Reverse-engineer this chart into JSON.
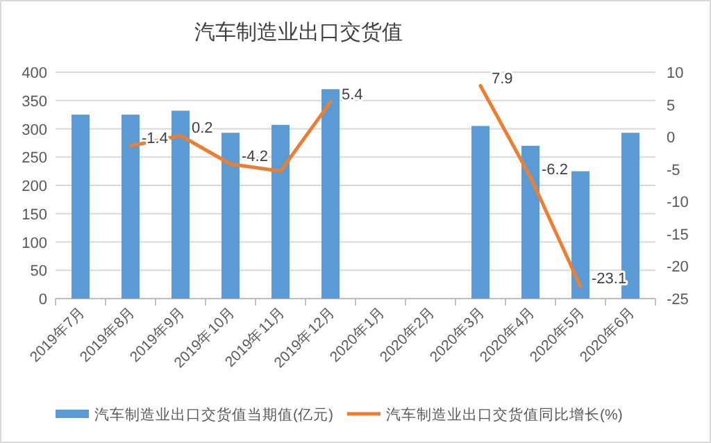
{
  "chart_data": {
    "type": "bar",
    "title": "汽车制造业出口交货值",
    "categories": [
      "2019年7月",
      "2019年8月",
      "2019年9月",
      "2019年10月",
      "2019年11月",
      "2019年12月",
      "2020年1月",
      "2020年2月",
      "2020年3月",
      "2020年4月",
      "2020年5月",
      "2020年6月"
    ],
    "series": [
      {
        "name": "汽车制造业出口交货值当期值(亿元)",
        "color": "#5b9bd5",
        "values": [
          325,
          325,
          332,
          293,
          307,
          370,
          null,
          null,
          305,
          270,
          225,
          293
        ]
      },
      {
        "name": "汽车制造业出口交货值同比增长(%)",
        "color": "#ed7d31",
        "type": "line",
        "axis": "y2",
        "values": [
          null,
          -1.4,
          0.2,
          -4.2,
          -5.3,
          5.4,
          null,
          null,
          7.9,
          -6.2,
          -23.1,
          null
        ],
        "value_labels": [
          null,
          "-1.4",
          "0.2",
          "-4.2",
          null,
          "5.4",
          null,
          null,
          "7.9",
          "-6.2",
          "-23.1",
          null
        ]
      }
    ],
    "ylim": [
      0,
      400
    ],
    "yticks": [
      0,
      50,
      100,
      150,
      200,
      250,
      300,
      350,
      400
    ],
    "y2lim": [
      -25,
      10
    ],
    "y2ticks": [
      -25,
      -20,
      -15,
      -10,
      -5,
      0,
      5,
      10
    ],
    "grid": "y",
    "legend": "bottom"
  }
}
